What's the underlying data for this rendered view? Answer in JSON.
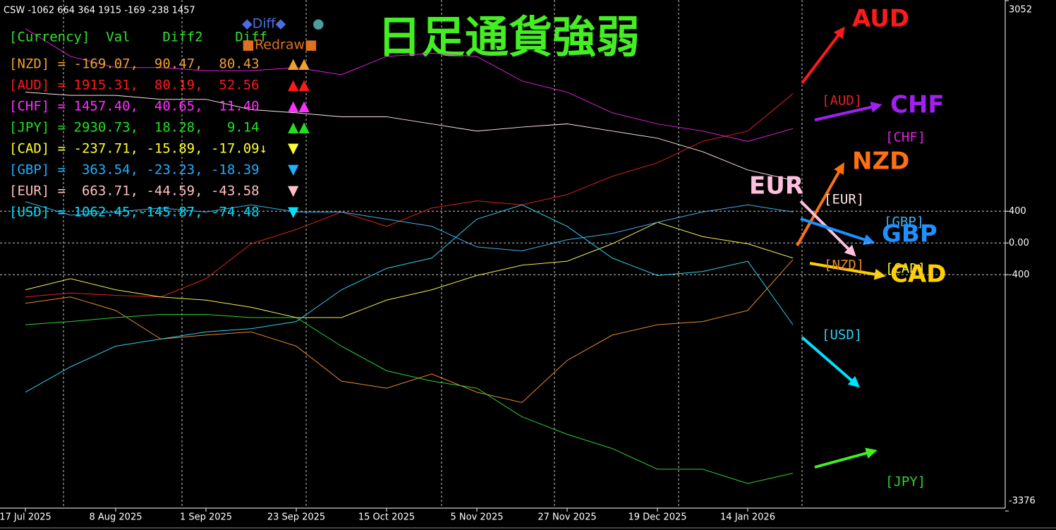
{
  "chart_data": {
    "type": "line",
    "title": "日足通貨強弱",
    "subtitle": "CSW -1062 664 364 1915 -169 -238 1457",
    "categories": [
      "17 Jul 2025",
      null,
      "8 Aug 2025",
      null,
      "1 Sep 2025",
      null,
      "23 Sep 2025",
      null,
      "15 Oct 2025",
      null,
      "5 Nov 2025",
      null,
      "27 Nov 2025",
      null,
      "19 Dec 2025",
      null,
      "14 Jan 2026",
      null
    ],
    "ylim": [
      -3376,
      3052
    ],
    "yticks": [
      {
        "value": 3052,
        "label": "3052"
      },
      400,
      {
        "value": 0,
        "label": "0.00"
      },
      -400,
      -3376
    ],
    "grid": true,
    "series": [
      {
        "name": "[NZD]",
        "color": "#e8882a",
        "values": [
          -760,
          -680,
          -850,
          -1210,
          -1160,
          -1120,
          -1300,
          -1740,
          -1830,
          -1650,
          -1880,
          -2010,
          -1480,
          -1160,
          -1030,
          -990,
          -850,
          -210
        ]
      },
      {
        "name": "[AUD]",
        "color": "#e02020",
        "values": [
          -680,
          -630,
          -660,
          -680,
          -450,
          -10,
          170,
          390,
          210,
          440,
          530,
          480,
          610,
          840,
          1010,
          1280,
          1410,
          1880
        ]
      },
      {
        "name": "[CHF]",
        "color": "#e020e0",
        "values": [
          2700,
          2350,
          2210,
          2210,
          2170,
          2170,
          2210,
          2120,
          2350,
          2390,
          2350,
          2040,
          1900,
          1640,
          1500,
          1410,
          1280,
          1440
        ]
      },
      {
        "name": "[JPY]",
        "color": "#30d030",
        "values": [
          -1030,
          -990,
          -940,
          -900,
          -900,
          -940,
          -940,
          -1300,
          -1610,
          -1740,
          -1830,
          -2190,
          -2410,
          -2590,
          -2850,
          -2850,
          -3030,
          -2900
        ]
      },
      {
        "name": "[CAD]",
        "color": "#f0f050",
        "values": [
          -590,
          -450,
          -590,
          -680,
          -720,
          -810,
          -940,
          -940,
          -720,
          -590,
          -410,
          -280,
          -230,
          -10,
          260,
          80,
          -10,
          -190
        ]
      },
      {
        "name": "[GBP]",
        "color": "#40b0f0",
        "values": [
          520,
          350,
          390,
          440,
          390,
          480,
          390,
          390,
          300,
          210,
          -50,
          -100,
          40,
          120,
          260,
          390,
          480,
          390
        ]
      },
      {
        "name": "[EUR]",
        "color": "#ffe4e4",
        "values": [
          1900,
          1860,
          1860,
          1810,
          1810,
          1680,
          1640,
          1590,
          1590,
          1500,
          1410,
          1460,
          1500,
          1410,
          1320,
          1150,
          920,
          790
        ]
      },
      {
        "name": "[USD]",
        "color": "#30d0f0",
        "values": [
          -1880,
          -1560,
          -1300,
          -1210,
          -1120,
          -1080,
          -990,
          -590,
          -320,
          -190,
          300,
          480,
          210,
          -190,
          -410,
          -360,
          -230,
          -1030
        ]
      }
    ]
  },
  "panel": {
    "header": {
      "text": "[Currency]  Val    Diff2    Diff",
      "color": "#30e030"
    },
    "buttons": [
      {
        "text": "◆Diff◆",
        "color": "#4a6ee0"
      },
      {
        "text": "●",
        "color": "#4aa0a0"
      },
      {
        "text": "■Redraw■",
        "color": "#e07020"
      }
    ],
    "rows": [
      {
        "text": "[NZD] = -169.07,  90.47,  80.43",
        "arrows": "▲▲",
        "color": "#f0a030"
      },
      {
        "text": "[AUD] = 1915.31,  80.19,  52.56",
        "arrows": "▲▲",
        "color": "#ff1a1a"
      },
      {
        "text": "[CHF] = 1457.40,  40.65,  11.40",
        "arrows": "▲▲",
        "color": "#ff30ff"
      },
      {
        "text": "[JPY] = 2930.73,  18.28,   9.14",
        "arrows": "▲▲",
        "color": "#20e020"
      },
      {
        "text": "[CAD] = -237.71, -15.89, -17.09↓",
        "arrows": "▼",
        "color": "#ffff30"
      },
      {
        "text": "[GBP] =  363.54, -23.23, -18.39",
        "arrows": "▼",
        "color": "#20b0ff"
      },
      {
        "text": "[EUR] =  663.71, -44.59, -43.58",
        "arrows": "▼",
        "color": "#ffc0c0"
      },
      {
        "text": "[USD] = 1062.45,-145.87, -74.48",
        "arrows": "▼",
        "color": "#00e0ff"
      }
    ]
  },
  "strength_labels": [
    {
      "text": "AUD",
      "color": "#ff1a1a"
    },
    {
      "text": "CHF",
      "color": "#a020f0"
    },
    {
      "text": "NZD",
      "color": "#ff7010"
    },
    {
      "text": "EUR",
      "color": "#ffc0e0"
    },
    {
      "text": "GBP",
      "color": "#1e90ff"
    },
    {
      "text": "CAD",
      "color": "#ffd000"
    }
  ]
}
